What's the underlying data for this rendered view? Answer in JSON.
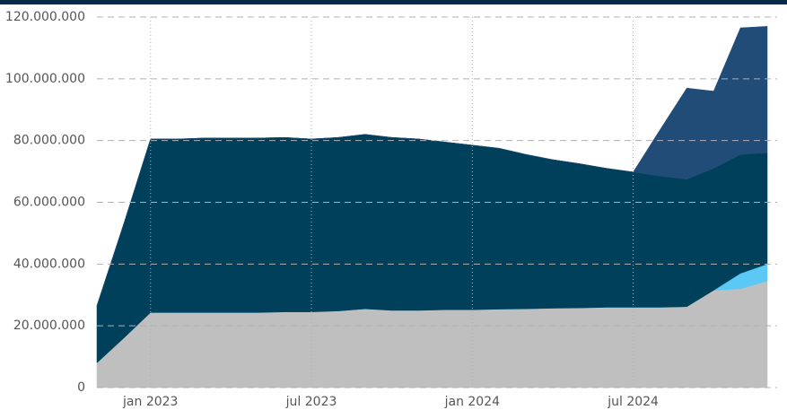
{
  "chart_data": {
    "type": "stacked_area",
    "x": [
      "2022-11",
      "2022-12",
      "2023-01",
      "2023-02",
      "2023-03",
      "2023-04",
      "2023-05",
      "2023-06",
      "2023-07",
      "2023-08",
      "2023-09",
      "2023-10",
      "2023-11",
      "2023-12",
      "2024-01",
      "2024-02",
      "2024-03",
      "2024-04",
      "2024-05",
      "2024-06",
      "2024-07",
      "2024-08",
      "2024-09",
      "2024-10",
      "2024-11",
      "2024-12"
    ],
    "series": [
      {
        "color": "#bfbfbf",
        "values": [
          8000000,
          16000000,
          24300000,
          24300000,
          24300000,
          24300000,
          24300000,
          24500000,
          24500000,
          24800000,
          25500000,
          25000000,
          25000000,
          25200000,
          25200000,
          25400000,
          25500000,
          25700000,
          25800000,
          26000000,
          26000000,
          26000000,
          26200000,
          31500000,
          32000000,
          34500000
        ]
      },
      {
        "color": "#5bc8f5",
        "values": [
          0,
          0,
          0,
          0,
          0,
          0,
          0,
          0,
          0,
          0,
          0,
          0,
          0,
          0,
          0,
          0,
          0,
          0,
          0,
          0,
          0,
          0,
          0,
          0,
          5000000,
          5500000
        ]
      },
      {
        "color": "#01405b",
        "values": [
          18500000,
          37000000,
          56200000,
          56200000,
          56500000,
          56500000,
          56500000,
          56500000,
          56000000,
          56200000,
          56500000,
          56000000,
          55500000,
          54300000,
          53300000,
          52100000,
          50000000,
          48100000,
          46700000,
          45000000,
          43800000,
          42500000,
          41300000,
          39500000,
          38500000,
          36000000
        ]
      },
      {
        "color": "#214c78",
        "values": [
          0,
          0,
          0,
          0,
          0,
          0,
          0,
          0,
          0,
          0,
          0,
          0,
          0,
          0,
          0,
          0,
          0,
          0,
          0,
          0,
          0,
          15000000,
          29500000,
          25000000,
          41000000,
          41000000
        ]
      }
    ],
    "xlim": [
      "2022-11",
      "2024-12"
    ],
    "xticks": [
      {
        "value": "2023-01",
        "label": "jan 2023"
      },
      {
        "value": "2023-07",
        "label": "jul 2023"
      },
      {
        "value": "2024-01",
        "label": "jan 2024"
      },
      {
        "value": "2024-07",
        "label": "jul 2024"
      }
    ],
    "ylim": [
      0,
      120000000
    ],
    "yticks": [
      0,
      {
        "value": 20000000,
        "label": "20.000.000"
      },
      {
        "value": 40000000,
        "label": "40.000.000"
      },
      {
        "value": 60000000,
        "label": "60.000.000"
      },
      {
        "value": 80000000,
        "label": "80.000.000"
      },
      {
        "value": 100000000,
        "label": "100.000.000"
      },
      {
        "value": 120000000,
        "label": "120.000.000"
      }
    ],
    "grid": true
  }
}
